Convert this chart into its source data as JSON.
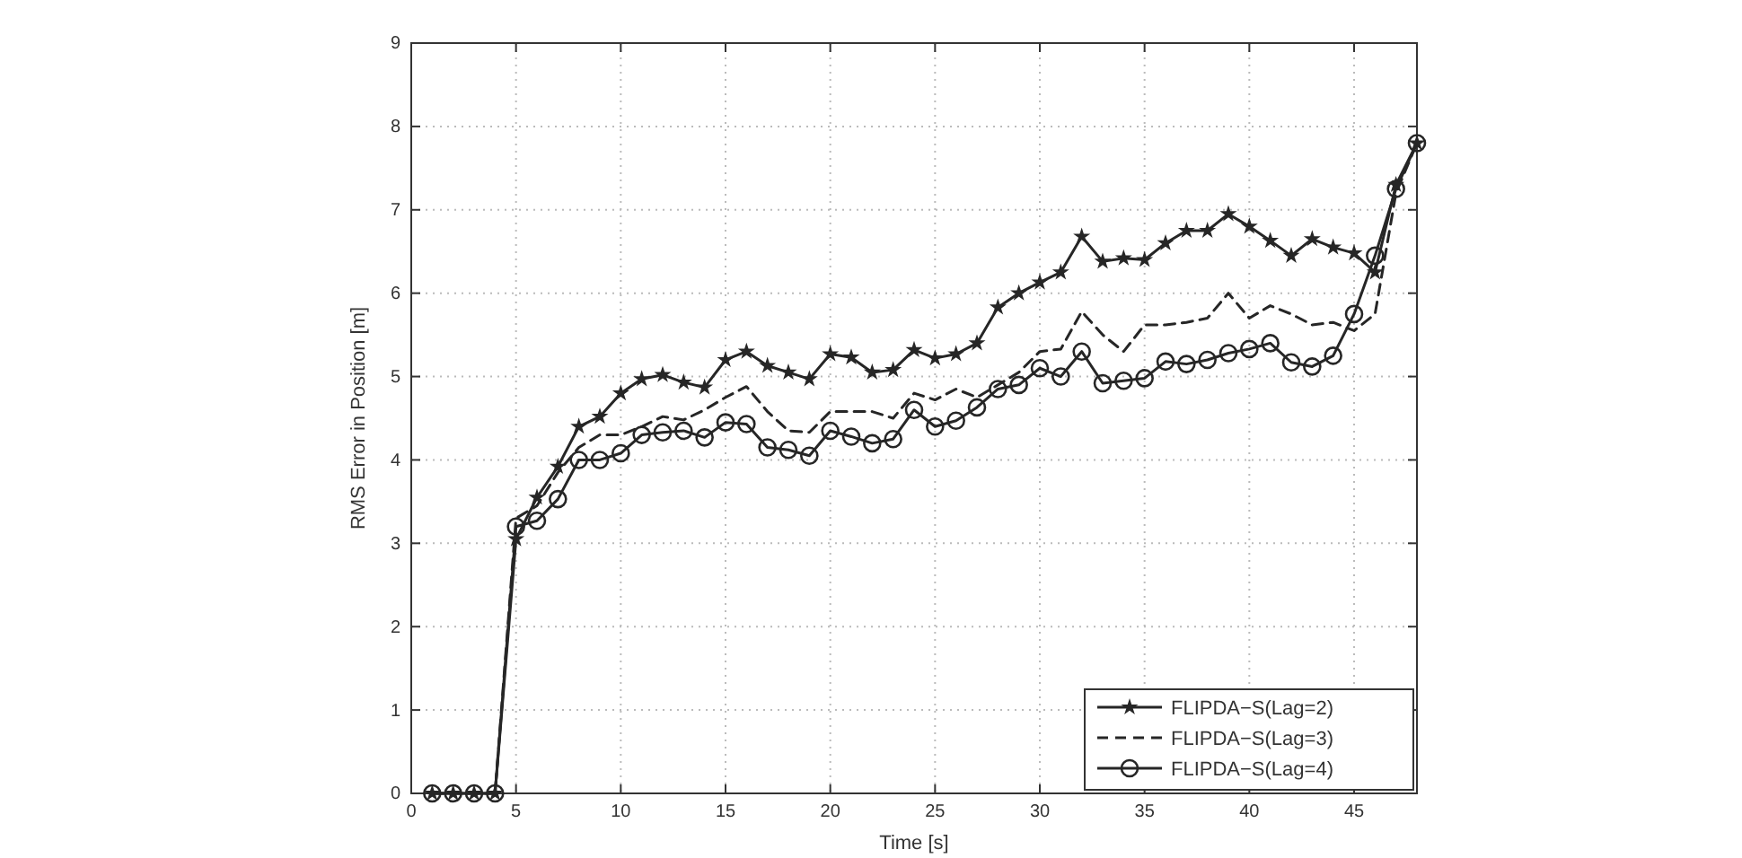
{
  "chart_data": {
    "type": "line",
    "xlabel": "Time [s]",
    "ylabel": "RMS Error in Position [m]",
    "x": [
      1,
      2,
      3,
      4,
      5,
      6,
      7,
      8,
      9,
      10,
      11,
      12,
      13,
      14,
      15,
      16,
      17,
      18,
      19,
      20,
      21,
      22,
      23,
      24,
      25,
      26,
      27,
      28,
      29,
      30,
      31,
      32,
      33,
      34,
      35,
      36,
      37,
      38,
      39,
      40,
      41,
      42,
      43,
      44,
      45,
      46,
      47,
      48
    ],
    "xlim": [
      0,
      48
    ],
    "xticks": [
      0,
      5,
      10,
      15,
      20,
      25,
      30,
      35,
      40,
      45
    ],
    "ylim": [
      0,
      9
    ],
    "yticks": [
      0,
      1,
      2,
      3,
      4,
      5,
      6,
      7,
      8,
      9
    ],
    "grid": true,
    "legend": "bottom right",
    "series": [
      {
        "name": "FLIPDA−S(Lag=2)",
        "color": "#262626",
        "marker": "star",
        "line_style": "solid",
        "values": [
          0,
          0,
          0,
          0,
          3.05,
          3.55,
          3.92,
          4.4,
          4.52,
          4.8,
          4.97,
          5.02,
          4.93,
          4.87,
          5.2,
          5.3,
          5.13,
          5.05,
          4.97,
          5.27,
          5.23,
          5.05,
          5.08,
          5.32,
          5.22,
          5.27,
          5.4,
          5.83,
          6.0,
          6.13,
          6.25,
          6.68,
          6.38,
          6.42,
          6.4,
          6.6,
          6.75,
          6.75,
          6.95,
          6.8,
          6.63,
          6.45,
          6.65,
          6.55,
          6.48,
          6.25,
          7.3,
          7.8
        ]
      },
      {
        "name": "FLIPDA−S(Lag=3)",
        "color": "#262626",
        "marker": "none",
        "line_style": "dashed",
        "values": [
          0,
          0,
          0,
          0,
          3.3,
          3.45,
          3.85,
          4.15,
          4.3,
          4.3,
          4.4,
          4.52,
          4.48,
          4.6,
          4.75,
          4.88,
          4.58,
          4.35,
          4.33,
          4.58,
          4.58,
          4.58,
          4.5,
          4.8,
          4.72,
          4.85,
          4.75,
          4.9,
          5.05,
          5.3,
          5.33,
          5.78,
          5.5,
          5.3,
          5.62,
          5.62,
          5.65,
          5.7,
          6.0,
          5.7,
          5.85,
          5.75,
          5.62,
          5.65,
          5.55,
          5.75,
          7.2,
          7.8
        ]
      },
      {
        "name": "FLIPDA−S(Lag=4)",
        "color": "#262626",
        "marker": "circle",
        "line_style": "solid",
        "values": [
          0,
          0,
          0,
          0,
          3.2,
          3.27,
          3.53,
          4.0,
          4.0,
          4.08,
          4.3,
          4.33,
          4.35,
          4.27,
          4.45,
          4.43,
          4.15,
          4.12,
          4.05,
          4.35,
          4.28,
          4.2,
          4.25,
          4.6,
          4.4,
          4.47,
          4.63,
          4.85,
          4.9,
          5.1,
          5.0,
          5.3,
          4.92,
          4.95,
          4.98,
          5.18,
          5.15,
          5.2,
          5.28,
          5.33,
          5.4,
          5.17,
          5.12,
          5.25,
          5.75,
          6.45,
          7.25,
          7.8
        ]
      }
    ]
  }
}
